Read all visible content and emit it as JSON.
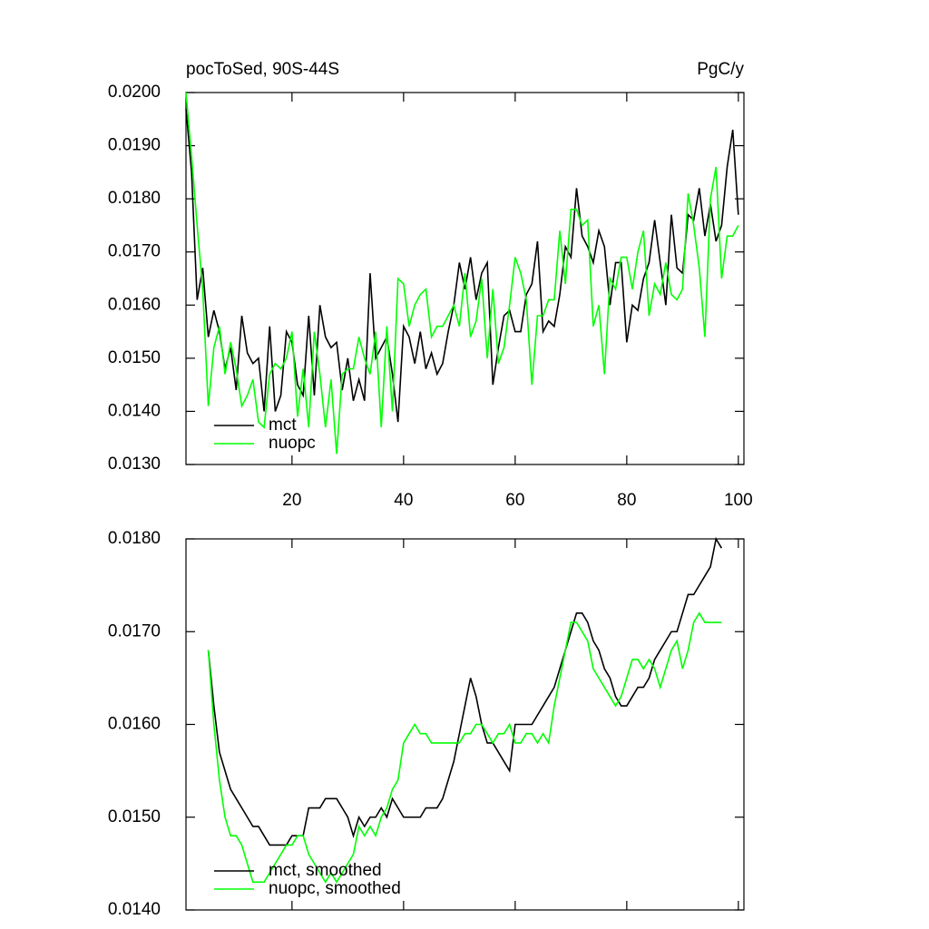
{
  "chart_data": [
    {
      "type": "line",
      "title": "pocToSed, 90S-44S",
      "units": "PgC/y",
      "x": [
        1,
        2,
        3,
        4,
        5,
        6,
        7,
        8,
        9,
        10,
        11,
        12,
        13,
        14,
        15,
        16,
        17,
        18,
        19,
        20,
        21,
        22,
        23,
        24,
        25,
        26,
        27,
        28,
        29,
        30,
        31,
        32,
        33,
        34,
        35,
        36,
        37,
        38,
        39,
        40,
        41,
        42,
        43,
        44,
        45,
        46,
        47,
        48,
        49,
        50,
        51,
        52,
        53,
        54,
        55,
        56,
        57,
        58,
        59,
        60,
        61,
        62,
        63,
        64,
        65,
        66,
        67,
        68,
        69,
        70,
        71,
        72,
        73,
        74,
        75,
        76,
        77,
        78,
        79,
        80,
        81,
        82,
        83,
        84,
        85,
        86,
        87,
        88,
        89,
        90,
        91,
        92,
        93,
        94,
        95,
        96,
        97,
        98,
        99,
        100
      ],
      "series": [
        {
          "name": "mct",
          "color": "#000000",
          "values": [
            0.0197,
            0.0185,
            0.0161,
            0.0167,
            0.0154,
            0.0159,
            0.0155,
            0.0148,
            0.0152,
            0.0144,
            0.0158,
            0.0151,
            0.0149,
            0.015,
            0.014,
            0.0156,
            0.014,
            0.0143,
            0.0155,
            0.0153,
            0.0145,
            0.0143,
            0.0158,
            0.0143,
            0.016,
            0.0154,
            0.0152,
            0.0153,
            0.0144,
            0.015,
            0.0142,
            0.0146,
            0.0142,
            0.0166,
            0.015,
            0.0152,
            0.0154,
            0.0147,
            0.0138,
            0.0156,
            0.0154,
            0.0149,
            0.0155,
            0.0148,
            0.0151,
            0.0147,
            0.0149,
            0.0155,
            0.016,
            0.0168,
            0.0163,
            0.0169,
            0.0161,
            0.0166,
            0.0168,
            0.0145,
            0.0152,
            0.0158,
            0.0159,
            0.0155,
            0.0155,
            0.0162,
            0.0164,
            0.0172,
            0.0155,
            0.0157,
            0.0156,
            0.0162,
            0.0171,
            0.0169,
            0.0182,
            0.0173,
            0.0171,
            0.0168,
            0.0174,
            0.0171,
            0.016,
            0.0168,
            0.0168,
            0.0153,
            0.016,
            0.0159,
            0.0165,
            0.0168,
            0.0176,
            0.0168,
            0.016,
            0.0177,
            0.0167,
            0.0166,
            0.0177,
            0.0176,
            0.0182,
            0.0173,
            0.0179,
            0.0172,
            0.0175,
            0.0186,
            0.0193,
            0.0177
          ]
        },
        {
          "name": "nuopc",
          "color": "#00ff00",
          "values": [
            0.02,
            0.0188,
            0.0175,
            0.0163,
            0.0141,
            0.0152,
            0.0156,
            0.0147,
            0.0153,
            0.0148,
            0.0141,
            0.0143,
            0.0146,
            0.0138,
            0.0137,
            0.0147,
            0.0149,
            0.0148,
            0.015,
            0.0155,
            0.0139,
            0.0148,
            0.0137,
            0.0155,
            0.0147,
            0.0137,
            0.0146,
            0.0132,
            0.0147,
            0.0148,
            0.0148,
            0.0154,
            0.015,
            0.0147,
            0.0155,
            0.0137,
            0.0156,
            0.014,
            0.0165,
            0.0164,
            0.0156,
            0.016,
            0.0162,
            0.0163,
            0.0154,
            0.0156,
            0.0156,
            0.0158,
            0.016,
            0.0156,
            0.0166,
            0.0154,
            0.0157,
            0.0165,
            0.015,
            0.0163,
            0.0149,
            0.0152,
            0.016,
            0.0169,
            0.0166,
            0.0161,
            0.0145,
            0.0158,
            0.0158,
            0.0161,
            0.0161,
            0.0174,
            0.0164,
            0.0178,
            0.0178,
            0.0175,
            0.0176,
            0.0156,
            0.016,
            0.0147,
            0.0165,
            0.0163,
            0.0169,
            0.0169,
            0.0163,
            0.017,
            0.0174,
            0.0158,
            0.0164,
            0.0162,
            0.0168,
            0.0162,
            0.0161,
            0.0163,
            0.0181,
            0.0175,
            0.0167,
            0.0154,
            0.018,
            0.0186,
            0.0165,
            0.0173,
            0.0173,
            0.0175
          ]
        }
      ],
      "xlim": [
        1,
        101
      ],
      "xticks": [
        20,
        40,
        60,
        80,
        100
      ],
      "ylim": [
        0.013,
        0.02
      ],
      "yticks": [
        {
          "value": 0.013,
          "label": "0.0130"
        },
        {
          "value": 0.014,
          "label": "0.0140"
        },
        {
          "value": 0.015,
          "label": "0.0150"
        },
        {
          "value": 0.016,
          "label": "0.0160"
        },
        {
          "value": 0.017,
          "label": "0.0170"
        },
        {
          "value": 0.018,
          "label": "0.0180"
        },
        {
          "value": 0.019,
          "label": "0.0190"
        },
        {
          "value": 0.02,
          "label": "0.0200"
        }
      ],
      "legend": "lower left"
    },
    {
      "type": "line",
      "x": [
        5,
        6,
        7,
        8,
        9,
        10,
        11,
        12,
        13,
        14,
        15,
        16,
        17,
        18,
        19,
        20,
        21,
        22,
        23,
        24,
        25,
        26,
        27,
        28,
        29,
        30,
        31,
        32,
        33,
        34,
        35,
        36,
        37,
        38,
        39,
        40,
        41,
        42,
        43,
        44,
        45,
        46,
        47,
        48,
        49,
        50,
        51,
        52,
        53,
        54,
        55,
        56,
        57,
        58,
        59,
        60,
        61,
        62,
        63,
        64,
        65,
        66,
        67,
        68,
        69,
        70,
        71,
        72,
        73,
        74,
        75,
        76,
        77,
        78,
        79,
        80,
        81,
        82,
        83,
        84,
        85,
        86,
        87,
        88,
        89,
        90,
        91,
        92,
        93,
        94,
        95,
        96,
        97
      ],
      "series": [
        {
          "name": "mct, smoothed",
          "color": "#000000",
          "values": [
            0.0168,
            0.0162,
            0.0157,
            0.0155,
            0.0153,
            0.0152,
            0.0151,
            0.015,
            0.0149,
            0.0149,
            0.0148,
            0.0147,
            0.0147,
            0.0147,
            0.0147,
            0.0148,
            0.0148,
            0.0148,
            0.0151,
            0.0151,
            0.0151,
            0.0152,
            0.0152,
            0.0152,
            0.0151,
            0.015,
            0.0148,
            0.015,
            0.0149,
            0.015,
            0.015,
            0.0151,
            0.015,
            0.0152,
            0.0151,
            0.015,
            0.015,
            0.015,
            0.015,
            0.0151,
            0.0151,
            0.0151,
            0.0152,
            0.0154,
            0.0156,
            0.0159,
            0.0162,
            0.0165,
            0.0163,
            0.016,
            0.0158,
            0.0158,
            0.0157,
            0.0156,
            0.0155,
            0.016,
            0.016,
            0.016,
            0.016,
            0.0161,
            0.0162,
            0.0163,
            0.0164,
            0.0166,
            0.0168,
            0.017,
            0.0172,
            0.0172,
            0.0171,
            0.0169,
            0.0168,
            0.0166,
            0.0165,
            0.0163,
            0.0162,
            0.0162,
            0.0163,
            0.0164,
            0.0164,
            0.0165,
            0.0167,
            0.0168,
            0.0169,
            0.017,
            0.017,
            0.0172,
            0.0174,
            0.0174,
            0.0175,
            0.0176,
            0.0177,
            0.018,
            0.0179
          ]
        },
        {
          "name": "nuopc, smoothed",
          "color": "#00ff00",
          "values": [
            0.0168,
            0.016,
            0.0154,
            0.015,
            0.0148,
            0.0148,
            0.0147,
            0.0145,
            0.0143,
            0.0143,
            0.0143,
            0.0144,
            0.0145,
            0.0146,
            0.0147,
            0.0147,
            0.0148,
            0.0148,
            0.0146,
            0.0145,
            0.0144,
            0.0143,
            0.0144,
            0.0143,
            0.0144,
            0.0145,
            0.0146,
            0.0149,
            0.0148,
            0.0149,
            0.0148,
            0.015,
            0.0151,
            0.0153,
            0.0154,
            0.0158,
            0.0159,
            0.016,
            0.0159,
            0.0159,
            0.0158,
            0.0158,
            0.0158,
            0.0158,
            0.0158,
            0.0158,
            0.0159,
            0.0159,
            0.016,
            0.016,
            0.0159,
            0.0158,
            0.0159,
            0.0159,
            0.016,
            0.0158,
            0.0158,
            0.0159,
            0.0159,
            0.0158,
            0.0159,
            0.0158,
            0.0162,
            0.0165,
            0.0168,
            0.0171,
            0.0171,
            0.017,
            0.0169,
            0.0166,
            0.0165,
            0.0164,
            0.0163,
            0.0162,
            0.0163,
            0.0165,
            0.0167,
            0.0167,
            0.0166,
            0.0167,
            0.0166,
            0.0164,
            0.0166,
            0.0168,
            0.0169,
            0.0166,
            0.0168,
            0.0171,
            0.0172,
            0.0171,
            0.0171,
            0.0171,
            0.0171
          ]
        }
      ],
      "xlim": [
        1,
        101
      ],
      "xticks": [
        20,
        40,
        60,
        80,
        100
      ],
      "ylim": [
        0.014,
        0.018
      ],
      "yticks": [
        {
          "value": 0.014,
          "label": "0.0140"
        },
        {
          "value": 0.015,
          "label": "0.0150"
        },
        {
          "value": 0.016,
          "label": "0.0160"
        },
        {
          "value": 0.017,
          "label": "0.0170"
        },
        {
          "value": 0.018,
          "label": "0.0180"
        }
      ],
      "legend": "lower left"
    }
  ]
}
